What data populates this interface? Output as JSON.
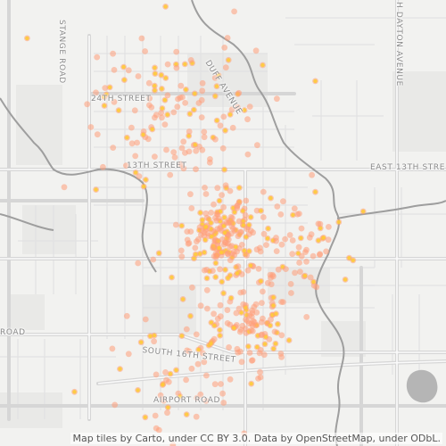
{
  "map": {
    "labels": {
      "stange_road": "STANGE ROAD",
      "dayton_avenue": "H DAYTON AVENUE",
      "duff_avenue": "DUFF AVENUE",
      "street_24th": "24TH STREET",
      "street_13th": "13TH STREET",
      "east_13th": "EAST 13TH STRE",
      "road_left": "ROAD",
      "south_16th": "SOUTH 16TH STREET",
      "airport_road": "AIRPORT ROAD"
    },
    "attribution": "Map tiles by Carto, under CC BY 3.0. Data by OpenStreetMap, under ODbL.",
    "colors": {
      "background": "#f2f2f0",
      "road_major": "#d6d6d6",
      "road_minor": "#e2e2e2",
      "water": "#9e9e9e",
      "marker_outer": "#ff9e7a",
      "marker_core": "#ffcc33"
    },
    "marker_clusters": [
      {
        "name": "downtown",
        "lon": 0.5,
        "lat": 0.53,
        "count": 190,
        "spread": 0.045
      },
      {
        "name": "campus-north",
        "lon": 0.4,
        "lat": 0.24,
        "count": 150,
        "spread": 0.1
      },
      {
        "name": "south-duff",
        "lon": 0.55,
        "lat": 0.72,
        "count": 120,
        "spread": 0.055
      },
      {
        "name": "east",
        "lon": 0.68,
        "lat": 0.55,
        "count": 70,
        "spread": 0.07
      },
      {
        "name": "southwest",
        "lon": 0.4,
        "lat": 0.86,
        "count": 60,
        "spread": 0.08
      }
    ]
  }
}
